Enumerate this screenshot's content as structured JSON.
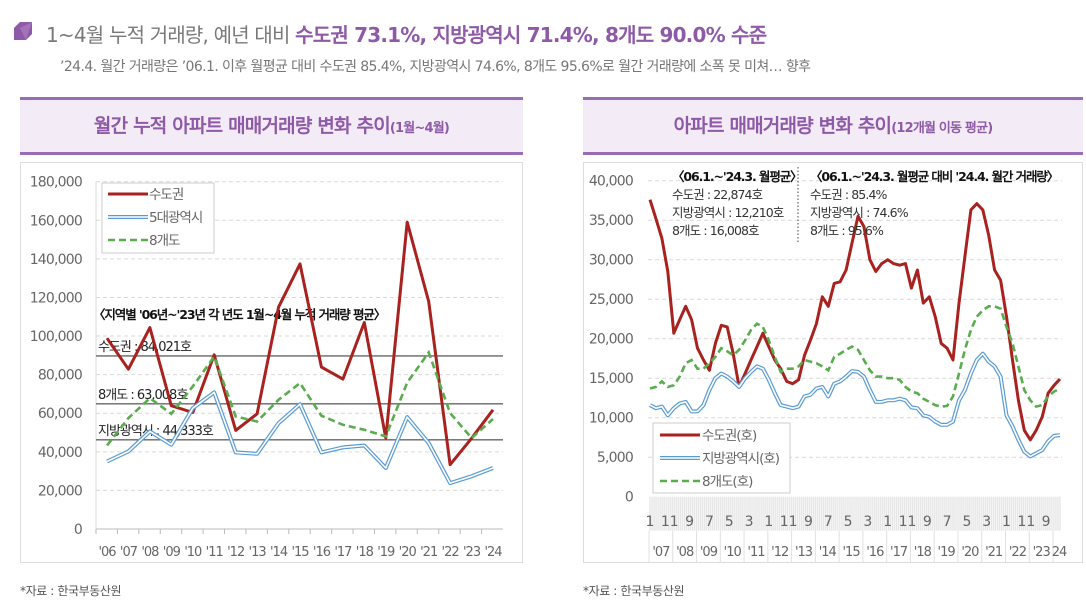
{
  "header": {
    "icon": "purple-folded-square-icon",
    "title_plain": "1~4월 누적 거래량, 예년 대비 ",
    "title_highlight": "수도권 73.1%, 지방광역시 71.4%, 8개도 90.0% 수준",
    "subtitle": "’24.4. 월간 거래량은 ’06.1. 이후 월평균 대비 수도권 85.4%, 지방광역시 74.6%, 8개도 95.6%로  월간 거래량에 소폭 못 미쳐… 향후"
  },
  "colors": {
    "accent": "#8e5aa8",
    "capital": "#a8221f",
    "metro": "#5b9bd5",
    "provinces": "#5aad4e"
  },
  "chart_data": [
    {
      "type": "line",
      "panel_title": "월간 누적 아파트 매매거래량 변화 추이",
      "panel_subtitle": "(1월~4월)",
      "categories": [
        "'06",
        "'07",
        "'08",
        "'09",
        "'10",
        "'11",
        "'12",
        "'13",
        "'14",
        "'15",
        "'16",
        "'17",
        "'18",
        "'19",
        "'20",
        "'21",
        "'22",
        "'23",
        "'24"
      ],
      "ylim": [
        0,
        180000
      ],
      "yticks": [
        "0",
        "20,000",
        "40,000",
        "60,000",
        "80,000",
        "100,000",
        "120,000",
        "140,000",
        "160,000",
        "180,000"
      ],
      "grid": true,
      "legend_position": "top-left",
      "series": [
        {
          "name": "수도권",
          "style": "solid",
          "values": [
            98900,
            82800,
            104400,
            63900,
            60400,
            90300,
            51100,
            59700,
            115000,
            137400,
            83900,
            77700,
            107000,
            47100,
            159000,
            117900,
            33300,
            47000,
            61800
          ]
        },
        {
          "name": "5대광역시",
          "style": "double",
          "values": [
            35000,
            40200,
            50600,
            43700,
            62600,
            70800,
            39700,
            39000,
            54900,
            64700,
            39700,
            42300,
            43300,
            31600,
            58000,
            44500,
            23800,
            27300,
            31600
          ]
        },
        {
          "name": "8개도",
          "style": "dashed",
          "values": [
            43300,
            57500,
            67800,
            59700,
            73900,
            89400,
            58300,
            55700,
            67000,
            75600,
            58700,
            54000,
            51400,
            48000,
            75900,
            91500,
            60100,
            47100,
            57000
          ]
        }
      ],
      "annotation_title": "〈지역별 '06년~'23년 각 년도 1월~4월 누적 거래량 평균〉",
      "reference_lines": [
        {
          "label": "수도권 : 84,021호",
          "level": 89700
        },
        {
          "label": "8개도 : 63,008호",
          "level": 64900
        },
        {
          "label": "지방광역시 : 44,333호",
          "level": 46200
        }
      ],
      "source": "*자료 : 한국부동산원"
    },
    {
      "type": "line",
      "panel_title": "아파트 매매거래량 변화 추이",
      "panel_subtitle": "(12개월 이동 평균)",
      "x": [
        "2007-01",
        "2007-04",
        "2007-07",
        "2007-10",
        "2008-01",
        "2008-04",
        "2008-07",
        "2008-10",
        "2009-01",
        "2009-04",
        "2009-07",
        "2009-10",
        "2010-01",
        "2010-04",
        "2010-07",
        "2010-10",
        "2011-01",
        "2011-04",
        "2011-07",
        "2011-10",
        "2012-01",
        "2012-04",
        "2012-07",
        "2012-10",
        "2013-01",
        "2013-04",
        "2013-07",
        "2013-10",
        "2014-01",
        "2014-04",
        "2014-07",
        "2014-10",
        "2015-01",
        "2015-04",
        "2015-07",
        "2015-10",
        "2016-01",
        "2016-04",
        "2016-07",
        "2016-10",
        "2017-01",
        "2017-04",
        "2017-07",
        "2017-10",
        "2018-01",
        "2018-04",
        "2018-07",
        "2018-10",
        "2019-01",
        "2019-04",
        "2019-07",
        "2019-10",
        "2020-01",
        "2020-04",
        "2020-07",
        "2020-10",
        "2021-01",
        "2021-04",
        "2021-07",
        "2021-10",
        "2022-01",
        "2022-04",
        "2022-07",
        "2022-10",
        "2023-01",
        "2023-04",
        "2023-07",
        "2023-10",
        "2024-01",
        "2024-04"
      ],
      "ylim": [
        0,
        40000
      ],
      "yticks": [
        "0",
        "5,000",
        "10,000",
        "15,000",
        "20,000",
        "25,000",
        "30,000",
        "35,000",
        "40,000"
      ],
      "month_ticks": [
        "1",
        "11",
        "9",
        "7",
        "5",
        "3",
        "1",
        "11",
        "9",
        "7",
        "5",
        "3",
        "1",
        "11",
        "9",
        "7",
        "5",
        "3",
        "1",
        "11",
        "9"
      ],
      "year_ticks": [
        "'07",
        "'08",
        "'09",
        "'10",
        "'11",
        "'12",
        "'13",
        "'14",
        "'15",
        "'16",
        "'17",
        "'18",
        "'19",
        "'20",
        "'21",
        "'22",
        "'23",
        "24"
      ],
      "grid": true,
      "legend_position": "bottom-left",
      "series": [
        {
          "name": "수도권(호)",
          "style": "solid",
          "values": [
            37600,
            35200,
            32700,
            28500,
            20700,
            22400,
            24100,
            22400,
            18800,
            17300,
            16000,
            19400,
            21700,
            21500,
            18100,
            13900,
            15600,
            17300,
            19000,
            20700,
            19000,
            17300,
            16200,
            14600,
            14300,
            14800,
            17900,
            19800,
            21900,
            25300,
            24100,
            27000,
            27200,
            28700,
            32100,
            35500,
            34200,
            30000,
            28500,
            29500,
            30000,
            29500,
            29300,
            29500,
            26400,
            28700,
            24500,
            25300,
            22800,
            19400,
            18800,
            17300,
            24500,
            30400,
            36300,
            37100,
            36300,
            33100,
            28700,
            27400,
            22800,
            17300,
            12200,
            8400,
            7200,
            8400,
            10100,
            13100,
            14100,
            14900
          ]
        },
        {
          "name": "지방광역시(호)",
          "style": "double",
          "values": [
            11600,
            11200,
            11400,
            10300,
            11200,
            11800,
            12000,
            10800,
            10800,
            11600,
            13500,
            15000,
            15600,
            15200,
            14600,
            13900,
            15000,
            15800,
            16500,
            16200,
            14800,
            13100,
            11600,
            11400,
            11200,
            11400,
            12700,
            12900,
            13700,
            13900,
            12700,
            14300,
            14600,
            15200,
            15900,
            15800,
            15200,
            13500,
            12000,
            12000,
            12200,
            12200,
            12400,
            12200,
            11300,
            11200,
            10300,
            10100,
            9500,
            9100,
            9100,
            9500,
            12200,
            13500,
            15600,
            17300,
            18100,
            17100,
            16500,
            15200,
            10300,
            8900,
            7200,
            5700,
            5100,
            5500,
            5900,
            7000,
            7700,
            7800
          ]
        },
        {
          "name": "8개도(호)",
          "style": "dashed",
          "values": [
            13700,
            13900,
            14600,
            13900,
            14100,
            15200,
            16900,
            17300,
            16200,
            16200,
            16900,
            17700,
            18800,
            18400,
            17900,
            18600,
            19800,
            21100,
            21900,
            21500,
            19800,
            17700,
            15800,
            16200,
            16200,
            16500,
            17300,
            17100,
            16900,
            16500,
            16000,
            17700,
            18100,
            18600,
            19000,
            18600,
            17300,
            16000,
            15200,
            15200,
            15000,
            15000,
            14800,
            13900,
            13300,
            13100,
            12400,
            12000,
            11600,
            11400,
            11500,
            12700,
            15600,
            18600,
            21100,
            22800,
            23600,
            24100,
            24100,
            23800,
            21500,
            19400,
            16500,
            13500,
            12200,
            11400,
            11600,
            12700,
            13300,
            13700
          ]
        }
      ],
      "annotations": [
        {
          "title": "〈06.1.~'24.3. 월평균〉",
          "lines": [
            "수도권 : 22,874호",
            "지방광역시 : 12,210호",
            "8개도 : 16,008호"
          ]
        },
        {
          "title": "〈06.1.~'24.3. 월평균 대비 '24.4. 월간 거래량〉",
          "lines": [
            "수도권 : 85.4%",
            "지방광역시 : 74.6%",
            "8개도 : 95.6%"
          ]
        }
      ],
      "source": "*자료 : 한국부동산원"
    }
  ]
}
